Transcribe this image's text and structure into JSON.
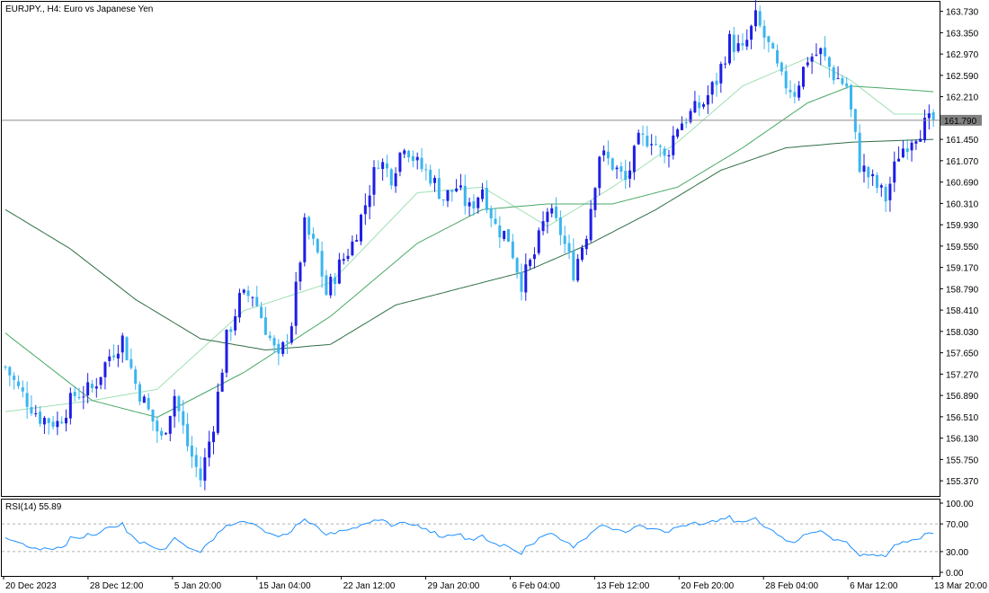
{
  "chart_data": [
    {
      "type": "candlestick",
      "title": "EURJPY., H4:  Euro vs Japanese Yen",
      "symbol": "EURJPY.",
      "timeframe": "H4",
      "description": "Euro vs Japanese Yen",
      "ylim": [
        155.1,
        163.9
      ],
      "y_ticks": [
        "163.730",
        "163.350",
        "162.970",
        "162.590",
        "162.210",
        "161.830",
        "161.450",
        "161.070",
        "160.690",
        "160.310",
        "159.930",
        "159.550",
        "159.170",
        "158.790",
        "158.410",
        "158.030",
        "157.650",
        "157.270",
        "156.890",
        "156.510",
        "156.130",
        "155.750",
        "155.370"
      ],
      "x_ticks": [
        "20 Dec 2023",
        "28 Dec 12:00",
        "5 Jan 20:00",
        "15 Jan 04:00",
        "22 Jan 12:00",
        "29 Jan 20:00",
        "6 Feb 04:00",
        "13 Feb 12:00",
        "20 Feb 20:00",
        "28 Feb 04:00",
        "6 Mar 12:00",
        "13 Mar 20:00"
      ],
      "current_price": "161.790",
      "colors": {
        "bull": "#1e1ee6",
        "bear": "#3ab5f0",
        "ma_fast": "#9fe0b4",
        "ma_mid": "#49a866",
        "ma_slow": "#2e6e44",
        "price_line": "#8c8c8c"
      },
      "close_path": [
        [
          0,
          157.4
        ],
        [
          3,
          157.0
        ],
        [
          8,
          156.5
        ],
        [
          12,
          156.4
        ],
        [
          16,
          156.9
        ],
        [
          20,
          157.0
        ],
        [
          24,
          157.6
        ],
        [
          27,
          157.9
        ],
        [
          30,
          157.1
        ],
        [
          33,
          156.6
        ],
        [
          36,
          156.1
        ],
        [
          39,
          156.9
        ],
        [
          42,
          156.0
        ],
        [
          45,
          155.4
        ],
        [
          48,
          156.4
        ],
        [
          51,
          157.9
        ],
        [
          54,
          158.6
        ],
        [
          57,
          158.7
        ],
        [
          60,
          158.1
        ],
        [
          63,
          157.5
        ],
        [
          66,
          158.2
        ],
        [
          69,
          159.9
        ],
        [
          72,
          159.4
        ],
        [
          74,
          158.7
        ],
        [
          77,
          159.2
        ],
        [
          80,
          159.6
        ],
        [
          83,
          160.3
        ],
        [
          86,
          161.1
        ],
        [
          89,
          160.8
        ],
        [
          92,
          161.4
        ],
        [
          95,
          161.0
        ],
        [
          98,
          160.8
        ],
        [
          101,
          160.4
        ],
        [
          104,
          160.6
        ],
        [
          107,
          160.2
        ],
        [
          110,
          160.6
        ],
        [
          113,
          159.9
        ],
        [
          116,
          159.7
        ],
        [
          119,
          158.9
        ],
        [
          122,
          159.4
        ],
        [
          125,
          160.2
        ],
        [
          128,
          159.8
        ],
        [
          131,
          159.1
        ],
        [
          134,
          159.8
        ],
        [
          137,
          161.2
        ],
        [
          140,
          161.0
        ],
        [
          143,
          160.7
        ],
        [
          146,
          161.4
        ],
        [
          149,
          161.5
        ],
        [
          152,
          161.1
        ],
        [
          155,
          161.7
        ],
        [
          158,
          161.9
        ],
        [
          161,
          162.1
        ],
        [
          164,
          162.5
        ],
        [
          167,
          163.2
        ],
        [
          170,
          163.0
        ],
        [
          173,
          163.6
        ],
        [
          176,
          163.1
        ],
        [
          179,
          162.5
        ],
        [
          182,
          162.3
        ],
        [
          185,
          162.9
        ],
        [
          188,
          163.0
        ],
        [
          191,
          162.6
        ],
        [
          194,
          162.4
        ],
        [
          197,
          161.0
        ],
        [
          200,
          160.7
        ],
        [
          203,
          160.4
        ],
        [
          206,
          161.2
        ],
        [
          209,
          161.5
        ],
        [
          212,
          161.7
        ],
        [
          214,
          161.79
        ]
      ],
      "series": [
        {
          "name": "",
          "values_ref": "fast_ma",
          "points": [
            [
              0,
              156.6
            ],
            [
              20,
              156.8
            ],
            [
              35,
              157.0
            ],
            [
              55,
              158.4
            ],
            [
              75,
              158.9
            ],
            [
              95,
              160.5
            ],
            [
              110,
              160.6
            ],
            [
              125,
              159.9
            ],
            [
              140,
              160.6
            ],
            [
              155,
              161.4
            ],
            [
              170,
              162.4
            ],
            [
              185,
              162.9
            ],
            [
              195,
              162.5
            ],
            [
              205,
              161.9
            ],
            [
              214,
              161.9
            ]
          ]
        },
        {
          "name": "",
          "values_ref": "mid_ma",
          "points": [
            [
              0,
              158.0
            ],
            [
              20,
              156.8
            ],
            [
              35,
              156.5
            ],
            [
              55,
              157.3
            ],
            [
              75,
              158.3
            ],
            [
              95,
              159.6
            ],
            [
              110,
              160.2
            ],
            [
              125,
              160.3
            ],
            [
              140,
              160.3
            ],
            [
              155,
              160.6
            ],
            [
              170,
              161.3
            ],
            [
              185,
              162.1
            ],
            [
              195,
              162.4
            ],
            [
              205,
              162.35
            ],
            [
              214,
              162.3
            ]
          ]
        },
        {
          "name": "",
          "values_ref": "slow_ma",
          "points": [
            [
              0,
              160.2
            ],
            [
              15,
              159.5
            ],
            [
              30,
              158.6
            ],
            [
              45,
              157.9
            ],
            [
              60,
              157.7
            ],
            [
              75,
              157.8
            ],
            [
              90,
              158.5
            ],
            [
              105,
              158.8
            ],
            [
              120,
              159.1
            ],
            [
              135,
              159.6
            ],
            [
              150,
              160.2
            ],
            [
              165,
              160.9
            ],
            [
              180,
              161.3
            ],
            [
              195,
              161.4
            ],
            [
              214,
              161.45
            ]
          ]
        }
      ],
      "bars": 215
    },
    {
      "type": "line",
      "title": "RSI(14) 55.89",
      "indicator": "RSI(14)",
      "current_value": "55.89",
      "ylim": [
        0,
        100
      ],
      "y_ticks": [
        "100.00",
        "70.00",
        "30.00",
        "0.00"
      ],
      "levels": [
        70,
        30
      ],
      "color": "#1e90ff"
    }
  ]
}
